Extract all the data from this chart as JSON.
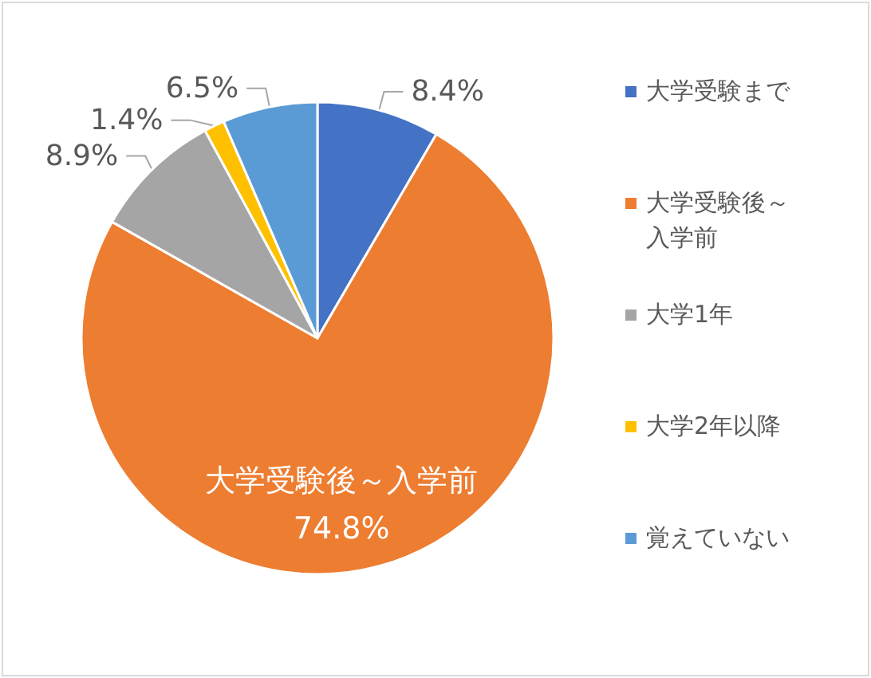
{
  "chart_data": {
    "type": "pie",
    "categories": [
      "大学受験まで",
      "大学受験後～入学前",
      "大学1年",
      "大学2年以降",
      "覚えていない"
    ],
    "values": [
      8.4,
      74.8,
      8.9,
      1.4,
      6.5
    ],
    "colors": [
      "#4472c4",
      "#ed7d31",
      "#a5a5a5",
      "#ffc000",
      "#5b9bd5"
    ],
    "value_labels": [
      "8.4%",
      "74.8%",
      "8.9%",
      "1.4%",
      "6.5%"
    ],
    "legend": "right"
  }
}
